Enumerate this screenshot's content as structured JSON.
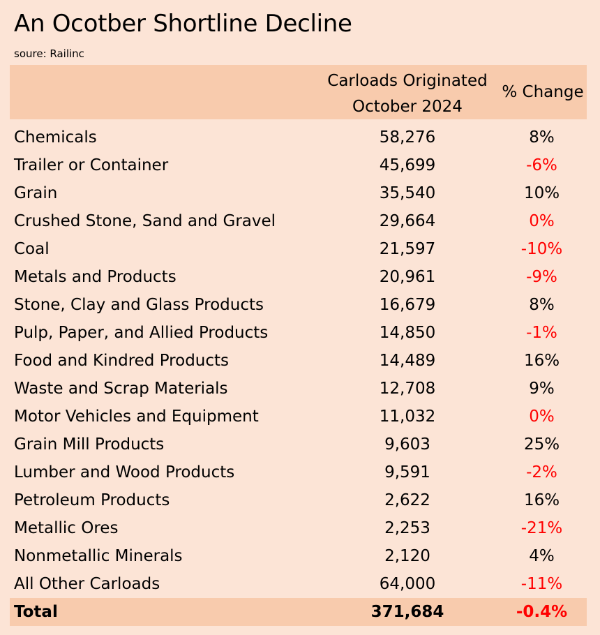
{
  "title": "An Ocotber Shortline Decline",
  "source": "soure: Railinc",
  "chart_data": {
    "type": "table",
    "columns": {
      "carloads_line1": "Carloads Originated",
      "carloads_line2": "October 2024",
      "change": "% Change"
    },
    "rows": [
      {
        "category": "Chemicals",
        "carloads": "58,276",
        "change": "8%",
        "negative": false
      },
      {
        "category": "Trailer or Container",
        "carloads": "45,699",
        "change": "-6%",
        "negative": true
      },
      {
        "category": "Grain",
        "carloads": "35,540",
        "change": "10%",
        "negative": false
      },
      {
        "category": "Crushed Stone, Sand and Gravel",
        "carloads": "29,664",
        "change": "0%",
        "negative": true
      },
      {
        "category": "Coal",
        "carloads": "21,597",
        "change": "-10%",
        "negative": true
      },
      {
        "category": "Metals and Products",
        "carloads": "20,961",
        "change": "-9%",
        "negative": true
      },
      {
        "category": "Stone, Clay and Glass Products",
        "carloads": "16,679",
        "change": "8%",
        "negative": false
      },
      {
        "category": "Pulp, Paper, and Allied Products",
        "carloads": "14,850",
        "change": "-1%",
        "negative": true
      },
      {
        "category": "Food and Kindred Products",
        "carloads": "14,489",
        "change": "16%",
        "negative": false
      },
      {
        "category": "Waste and Scrap Materials",
        "carloads": "12,708",
        "change": "9%",
        "negative": false
      },
      {
        "category": "Motor Vehicles and Equipment",
        "carloads": "11,032",
        "change": "0%",
        "negative": true
      },
      {
        "category": "Grain Mill Products",
        "carloads": "9,603",
        "change": "25%",
        "negative": false
      },
      {
        "category": "Lumber and Wood Products",
        "carloads": "9,591",
        "change": "-2%",
        "negative": true
      },
      {
        "category": "Petroleum Products",
        "carloads": "2,622",
        "change": "16%",
        "negative": false
      },
      {
        "category": "Metallic Ores",
        "carloads": "2,253",
        "change": "-21%",
        "negative": true
      },
      {
        "category": "Nonmetallic Minerals",
        "carloads": "2,120",
        "change": "4%",
        "negative": false
      },
      {
        "category": "All Other Carloads",
        "carloads": "64,000",
        "change": "-11%",
        "negative": true
      }
    ],
    "total": {
      "category": "Total",
      "carloads": "371,684",
      "change": "-0.4%",
      "negative": true
    }
  },
  "colors": {
    "background": "#fce4d6",
    "header_fill": "#f8cbad",
    "negative_text": "#ff0000"
  }
}
